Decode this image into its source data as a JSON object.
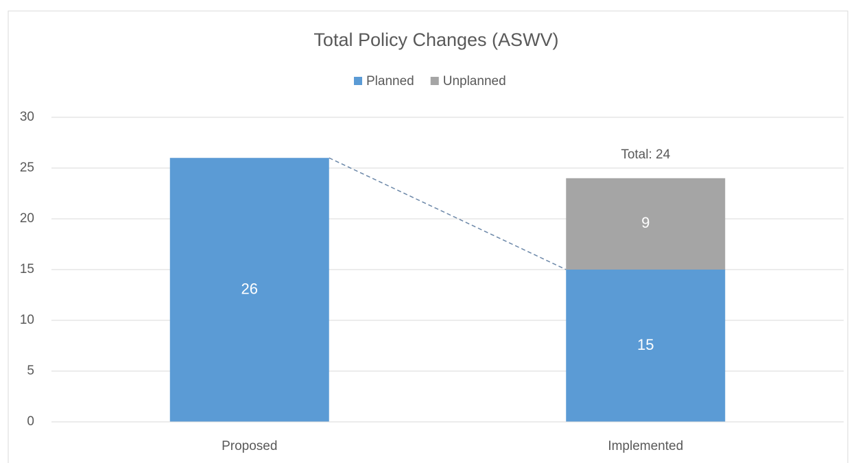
{
  "chart_data": {
    "type": "stacked_bar",
    "title": "Total Policy Changes (ASWV)",
    "categories": [
      "Proposed",
      "Implemented"
    ],
    "series": [
      {
        "name": "Planned",
        "color": "#5b9bd5",
        "values": [
          26,
          15
        ]
      },
      {
        "name": "Unplanned",
        "color": "#a5a5a5",
        "values": [
          null,
          9
        ]
      }
    ],
    "annotations": [
      "Total: 24"
    ],
    "ylim": [
      0,
      30
    ],
    "yticks": [
      0,
      5,
      10,
      15,
      20,
      25,
      30
    ],
    "grid": true,
    "legend": "top"
  }
}
